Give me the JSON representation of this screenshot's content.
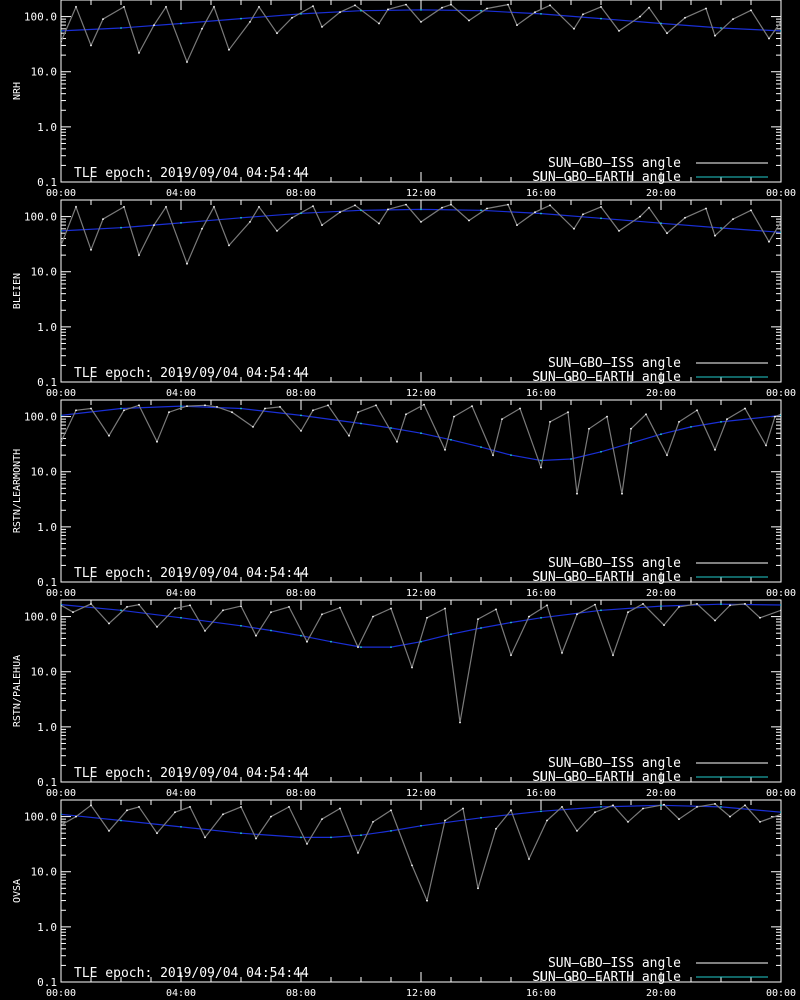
{
  "tle_epoch": "TLE epoch: 2019/09/04 04:54:44",
  "legend": [
    {
      "label": "SUN–GBO–ISS angle",
      "color": "#ffffff"
    },
    {
      "label": "SUN–GBO–EARTH angle",
      "color": "#22cccc"
    }
  ],
  "colors": {
    "background": "#000000",
    "axes": "#ffffff",
    "iss_sunlit": "#7a7a7a",
    "iss_visible": "#ffffff",
    "earth_below": "#1a2fd6",
    "earth_above": "#22cccc"
  },
  "chart_data": [
    {
      "type": "line",
      "ylabel": "NRH",
      "yscale": "log",
      "ylim": [
        0.1,
        200
      ],
      "xlim": [
        0,
        24
      ],
      "x_ticks": [
        "00:00",
        "04:00",
        "08:00",
        "12:00",
        "16:00",
        "20:00",
        "00:00"
      ],
      "y_ticks": [
        "0.1",
        "1.0",
        "10.0",
        "100.0"
      ],
      "series": [
        {
          "name": "SUN–GBO–ISS angle",
          "x": [
            0.0,
            0.5,
            1.0,
            1.4,
            2.1,
            2.6,
            3.1,
            3.5,
            4.2,
            4.7,
            5.1,
            5.6,
            6.3,
            6.6,
            7.2,
            7.7,
            8.4,
            8.7,
            9.3,
            9.8,
            10.6,
            10.9,
            11.5,
            12.0,
            12.7,
            13.0,
            13.6,
            14.2,
            14.9,
            15.2,
            15.8,
            16.3,
            17.1,
            17.4,
            18.0,
            18.6,
            19.3,
            19.6,
            20.2,
            20.8,
            21.5,
            21.8,
            22.4,
            23.0,
            23.6,
            24.0
          ],
          "y": [
            35,
            150,
            30,
            90,
            150,
            22,
            70,
            150,
            15,
            60,
            150,
            25,
            80,
            150,
            50,
            95,
            155,
            65,
            120,
            160,
            75,
            135,
            165,
            80,
            145,
            165,
            85,
            140,
            165,
            70,
            120,
            160,
            60,
            110,
            150,
            55,
            100,
            145,
            50,
            95,
            140,
            45,
            90,
            130,
            40,
            80
          ]
        },
        {
          "name": "SUN–GBO–EARTH angle",
          "x": [
            0,
            2,
            4,
            6,
            8,
            10,
            12,
            14,
            16,
            18,
            20,
            22,
            24
          ],
          "y": [
            55,
            62,
            75,
            92,
            112,
            128,
            132,
            128,
            112,
            92,
            75,
            62,
            55
          ]
        }
      ]
    },
    {
      "type": "line",
      "ylabel": "BLEIEN",
      "yscale": "log",
      "ylim": [
        0.1,
        200
      ],
      "xlim": [
        0,
        24
      ],
      "x_ticks": [
        "00:00",
        "04:00",
        "08:00",
        "12:00",
        "16:00",
        "20:00",
        "00:00"
      ],
      "y_ticks": [
        "0.1",
        "1.0",
        "10.0",
        "100.0"
      ],
      "series": [
        {
          "name": "SUN–GBO–ISS angle",
          "x": [
            0.0,
            0.5,
            1.0,
            1.4,
            2.1,
            2.6,
            3.1,
            3.5,
            4.2,
            4.7,
            5.1,
            5.6,
            6.3,
            6.6,
            7.2,
            7.7,
            8.4,
            8.7,
            9.3,
            9.8,
            10.6,
            10.9,
            11.5,
            12.0,
            12.7,
            13.0,
            13.6,
            14.2,
            14.9,
            15.2,
            15.8,
            16.3,
            17.1,
            17.4,
            18.0,
            18.6,
            19.3,
            19.6,
            20.2,
            20.8,
            21.5,
            21.8,
            22.4,
            23.0,
            23.6,
            24.0
          ],
          "y": [
            30,
            150,
            25,
            90,
            150,
            20,
            70,
            150,
            14,
            60,
            150,
            30,
            80,
            150,
            55,
            95,
            155,
            70,
            120,
            160,
            75,
            135,
            165,
            80,
            145,
            165,
            85,
            140,
            165,
            70,
            120,
            160,
            60,
            110,
            150,
            55,
            100,
            145,
            50,
            95,
            140,
            45,
            90,
            130,
            35,
            80
          ]
        },
        {
          "name": "SUN–GBO–EARTH angle",
          "x": [
            0,
            2,
            4,
            6,
            8,
            10,
            12,
            14,
            16,
            18,
            20,
            22,
            24
          ],
          "y": [
            55,
            63,
            77,
            95,
            115,
            130,
            135,
            130,
            114,
            93,
            76,
            62,
            52
          ]
        }
      ]
    },
    {
      "type": "line",
      "ylabel": "RSTN/LEARMONTH",
      "yscale": "log",
      "ylim": [
        0.1,
        200
      ],
      "xlim": [
        0,
        24
      ],
      "x_ticks": [
        "00:00",
        "04:00",
        "08:00",
        "12:00",
        "16:00",
        "20:00",
        "00:00"
      ],
      "y_ticks": [
        "0.1",
        "1.0",
        "10.0",
        "100.0"
      ],
      "series": [
        {
          "name": "SUN–GBO–ISS angle",
          "x": [
            0.0,
            0.5,
            1.0,
            1.6,
            2.1,
            2.6,
            3.2,
            3.6,
            4.2,
            4.8,
            5.2,
            5.7,
            6.4,
            6.8,
            7.3,
            8.0,
            8.4,
            8.9,
            9.6,
            9.9,
            10.5,
            11.2,
            11.5,
            12.1,
            12.8,
            13.1,
            13.7,
            14.4,
            14.7,
            15.3,
            16.0,
            16.3,
            16.9,
            17.2,
            17.6,
            18.2,
            18.7,
            19.0,
            19.5,
            20.2,
            20.6,
            21.2,
            21.8,
            22.2,
            22.8,
            23.5,
            23.8,
            24.0
          ],
          "y": [
            35,
            130,
            140,
            45,
            130,
            160,
            35,
            120,
            155,
            160,
            150,
            120,
            65,
            140,
            150,
            55,
            130,
            160,
            45,
            120,
            160,
            35,
            110,
            165,
            25,
            100,
            155,
            20,
            90,
            140,
            12,
            80,
            120,
            4,
            60,
            100,
            4,
            60,
            110,
            20,
            80,
            130,
            25,
            90,
            140,
            30,
            100,
            110
          ]
        },
        {
          "name": "SUN–GBO–EARTH angle",
          "x": [
            0,
            2,
            4,
            6,
            8,
            10,
            11,
            12,
            13,
            14,
            15,
            16,
            17,
            18,
            19,
            20,
            21,
            22,
            24
          ],
          "y": [
            105,
            140,
            155,
            140,
            105,
            75,
            62,
            50,
            38,
            28,
            20,
            16,
            17,
            23,
            33,
            48,
            65,
            80,
            105
          ]
        }
      ]
    },
    {
      "type": "line",
      "ylabel": "RSTN/PALEHUA",
      "yscale": "log",
      "ylim": [
        0.1,
        200
      ],
      "xlim": [
        0,
        24
      ],
      "x_ticks": [
        "00:00",
        "04:00",
        "08:00",
        "12:00",
        "16:00",
        "20:00",
        "00:00"
      ],
      "y_ticks": [
        "0.1",
        "1.0",
        "10.0",
        "100.0"
      ],
      "series": [
        {
          "name": "SUN–GBO–ISS angle",
          "x": [
            0.0,
            0.4,
            1.0,
            1.6,
            2.2,
            2.6,
            3.2,
            3.8,
            4.3,
            4.8,
            5.4,
            6.0,
            6.5,
            7.0,
            7.6,
            8.2,
            8.7,
            9.3,
            9.9,
            10.4,
            11.0,
            11.7,
            12.2,
            12.8,
            13.3,
            13.9,
            14.5,
            15.0,
            15.6,
            16.2,
            16.7,
            17.2,
            17.8,
            18.4,
            18.9,
            19.4,
            20.1,
            20.6,
            21.2,
            21.8,
            22.3,
            22.8,
            23.3,
            24.0
          ],
          "y": [
            160,
            120,
            170,
            75,
            150,
            165,
            65,
            140,
            160,
            55,
            130,
            155,
            45,
            120,
            150,
            35,
            110,
            145,
            28,
            100,
            140,
            12,
            95,
            140,
            1.2,
            90,
            135,
            20,
            100,
            160,
            22,
            110,
            165,
            20,
            120,
            170,
            70,
            150,
            170,
            85,
            160,
            170,
            95,
            130
          ]
        },
        {
          "name": "SUN–GBO–EARTH angle",
          "x": [
            0,
            2,
            4,
            6,
            7,
            8,
            9,
            10,
            11,
            12,
            13,
            14,
            15,
            16,
            18,
            20,
            22,
            24
          ],
          "y": [
            165,
            130,
            95,
            68,
            56,
            45,
            35,
            28,
            28,
            35,
            48,
            62,
            78,
            95,
            130,
            155,
            168,
            162
          ]
        }
      ]
    },
    {
      "type": "line",
      "ylabel": "OVSA",
      "yscale": "log",
      "ylim": [
        0.1,
        200
      ],
      "xlim": [
        0,
        24
      ],
      "x_ticks": [
        "00:00",
        "04:00",
        "08:00",
        "12:00",
        "16:00",
        "20:00",
        "00:00"
      ],
      "y_ticks": [
        "0.1",
        "1.0",
        "10.0",
        "100.0"
      ],
      "series": [
        {
          "name": "SUN–GBO–ISS angle",
          "x": [
            0.0,
            0.5,
            1.0,
            1.6,
            2.2,
            2.6,
            3.2,
            3.8,
            4.3,
            4.8,
            5.4,
            6.0,
            6.5,
            7.0,
            7.6,
            8.2,
            8.7,
            9.3,
            9.9,
            10.4,
            11.0,
            11.7,
            12.2,
            12.8,
            13.4,
            13.9,
            14.5,
            15.0,
            15.6,
            16.2,
            16.7,
            17.2,
            17.8,
            18.4,
            18.9,
            19.4,
            20.1,
            20.6,
            21.2,
            21.8,
            22.3,
            22.8,
            23.3,
            24.0
          ],
          "y": [
            70,
            100,
            160,
            55,
            130,
            150,
            50,
            120,
            150,
            42,
            110,
            150,
            40,
            100,
            150,
            32,
            90,
            140,
            22,
            80,
            130,
            13,
            3,
            85,
            140,
            5,
            60,
            130,
            17,
            85,
            150,
            55,
            120,
            160,
            80,
            140,
            165,
            90,
            150,
            170,
            100,
            160,
            80,
            110
          ]
        },
        {
          "name": "SUN–GBO–EARTH angle",
          "x": [
            0,
            2,
            4,
            6,
            8,
            9,
            10,
            11,
            12,
            14,
            16,
            18,
            20,
            22,
            24
          ],
          "y": [
            110,
            85,
            65,
            50,
            42,
            42,
            46,
            55,
            68,
            95,
            125,
            150,
            160,
            150,
            120
          ]
        }
      ]
    }
  ]
}
